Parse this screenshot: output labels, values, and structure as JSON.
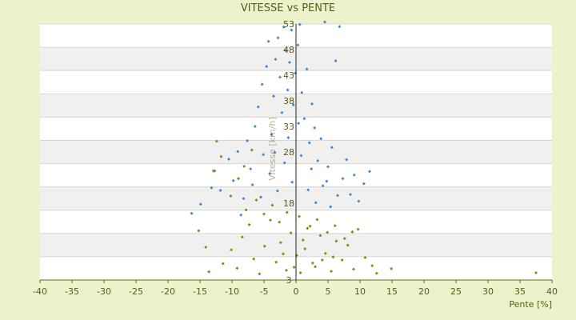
{
  "chart_data": {
    "type": "scatter",
    "title": "VITESSE vs PENTE",
    "xlabel": "Pente [%]",
    "ylabel": "Vitesse [km/h]",
    "xlim": [
      -40,
      40
    ],
    "ylim": [
      3,
      53
    ],
    "x_ticks": [
      -40,
      -35,
      -30,
      -25,
      -20,
      -15,
      -10,
      -5,
      0,
      5,
      10,
      15,
      20,
      25,
      30,
      35,
      40
    ],
    "y_ticks": [
      3,
      8,
      13,
      18,
      23,
      28,
      33,
      38,
      43,
      48,
      53
    ],
    "y_tick_labels_shown": [
      3,
      18,
      28,
      33,
      38,
      43,
      48,
      53
    ],
    "grid": "horizontal alternating bands",
    "legend": "none",
    "colors": {
      "background": "#ecf2cc",
      "plot_band_light": "#ffffff",
      "plot_band_dark": "#f0f0f0",
      "series_blue": "#3a8ad8",
      "series_olive": "#8a8a10",
      "text": "#5c5a14"
    },
    "series": [
      {
        "color": "#3a8ad8",
        "marker": "diamond",
        "points": [
          [
            -16.3,
            16.0
          ],
          [
            -14.9,
            17.8
          ],
          [
            -13.2,
            21.0
          ],
          [
            -12.7,
            24.3
          ],
          [
            -11.8,
            20.5
          ],
          [
            -10.5,
            26.6
          ],
          [
            -9.8,
            22.4
          ],
          [
            -9.1,
            28.1
          ],
          [
            -8.2,
            18.9
          ],
          [
            -7.6,
            30.2
          ],
          [
            -7.1,
            24.7
          ],
          [
            -6.4,
            33.0
          ],
          [
            -5.9,
            36.8
          ],
          [
            -5.3,
            41.2
          ],
          [
            -5.1,
            27.5
          ],
          [
            -4.6,
            44.7
          ],
          [
            -4.3,
            49.6
          ],
          [
            -3.8,
            31.4
          ],
          [
            -3.5,
            38.9
          ],
          [
            -3.2,
            46.1
          ],
          [
            -2.8,
            50.3
          ],
          [
            -2.5,
            42.6
          ],
          [
            -2.2,
            35.7
          ],
          [
            -1.9,
            52.4
          ],
          [
            -1.6,
            47.8
          ],
          [
            -1.3,
            40.1
          ],
          [
            -1.0,
            45.5
          ],
          [
            -0.7,
            51.8
          ],
          [
            -0.4,
            37.2
          ],
          [
            -0.1,
            43.4
          ],
          [
            0.3,
            48.9
          ],
          [
            0.6,
            52.9
          ],
          [
            0.9,
            39.6
          ],
          [
            1.3,
            34.5
          ],
          [
            1.7,
            44.2
          ],
          [
            2.1,
            29.8
          ],
          [
            2.5,
            37.4
          ],
          [
            2.9,
            32.7
          ],
          [
            3.4,
            26.3
          ],
          [
            3.9,
            30.6
          ],
          [
            4.5,
            53.4
          ],
          [
            5.0,
            25.1
          ],
          [
            5.6,
            28.9
          ],
          [
            6.2,
            45.8
          ],
          [
            6.8,
            52.5
          ],
          [
            7.3,
            22.8
          ],
          [
            7.9,
            26.5
          ],
          [
            8.5,
            19.7
          ],
          [
            9.1,
            23.5
          ],
          [
            9.8,
            18.4
          ],
          [
            10.6,
            21.8
          ],
          [
            11.5,
            24.2
          ],
          [
            -6.8,
            21.6
          ],
          [
            -5.5,
            19.2
          ],
          [
            -4.1,
            23.8
          ],
          [
            -2.9,
            20.4
          ],
          [
            -1.8,
            25.9
          ],
          [
            -0.6,
            22.1
          ],
          [
            0.8,
            27.3
          ],
          [
            1.9,
            20.6
          ],
          [
            3.1,
            18.1
          ],
          [
            4.2,
            21.4
          ],
          [
            5.4,
            17.3
          ],
          [
            6.5,
            19.5
          ],
          [
            -3.3,
            27.9
          ],
          [
            -1.2,
            30.8
          ],
          [
            0.4,
            33.6
          ],
          [
            2.4,
            24.7
          ],
          [
            4.8,
            22.3
          ],
          [
            -8.6,
            15.7
          ]
        ]
      },
      {
        "color": "#8a8a10",
        "marker": "diamond",
        "points": [
          [
            -13.6,
            4.6
          ],
          [
            -11.4,
            6.2
          ],
          [
            -10.1,
            8.9
          ],
          [
            -9.2,
            5.3
          ],
          [
            -8.4,
            11.4
          ],
          [
            -7.3,
            13.8
          ],
          [
            -6.6,
            7.1
          ],
          [
            -5.7,
            4.2
          ],
          [
            -4.9,
            9.6
          ],
          [
            -4.0,
            14.7
          ],
          [
            -3.1,
            6.5
          ],
          [
            -2.4,
            10.3
          ],
          [
            -1.5,
            4.9
          ],
          [
            -0.8,
            12.2
          ],
          [
            0.1,
            7.8
          ],
          [
            0.7,
            4.4
          ],
          [
            1.4,
            9.1
          ],
          [
            2.2,
            13.5
          ],
          [
            3.0,
            5.6
          ],
          [
            3.8,
            11.7
          ],
          [
            4.6,
            8.2
          ],
          [
            5.5,
            4.7
          ],
          [
            6.3,
            10.6
          ],
          [
            7.2,
            6.9
          ],
          [
            8.1,
            9.8
          ],
          [
            9.0,
            5.1
          ],
          [
            9.7,
            12.9
          ],
          [
            10.8,
            7.4
          ],
          [
            11.9,
            5.8
          ],
          [
            12.6,
            4.3
          ],
          [
            14.9,
            5.2
          ],
          [
            37.5,
            4.4
          ],
          [
            -12.9,
            24.3
          ],
          [
            -11.7,
            27.1
          ],
          [
            -10.2,
            19.4
          ],
          [
            -9.0,
            22.8
          ],
          [
            -7.8,
            16.7
          ],
          [
            -6.2,
            18.6
          ],
          [
            -5.0,
            15.9
          ],
          [
            -3.7,
            17.6
          ],
          [
            -2.6,
            14.3
          ],
          [
            -1.4,
            16.2
          ],
          [
            0.5,
            15.4
          ],
          [
            1.8,
            13.1
          ],
          [
            3.3,
            14.8
          ],
          [
            4.9,
            12.3
          ],
          [
            6.1,
            13.6
          ],
          [
            7.6,
            11.1
          ],
          [
            8.8,
            12.4
          ],
          [
            -12.4,
            30.1
          ],
          [
            -8.1,
            25.2
          ],
          [
            -6.9,
            28.4
          ],
          [
            -15.2,
            12.6
          ],
          [
            -14.1,
            9.4
          ],
          [
            2.6,
            6.3
          ],
          [
            5.8,
            7.5
          ],
          [
            -0.3,
            5.5
          ],
          [
            1.1,
            10.8
          ],
          [
            -2.0,
            8.1
          ],
          [
            4.1,
            6.9
          ]
        ]
      }
    ]
  }
}
